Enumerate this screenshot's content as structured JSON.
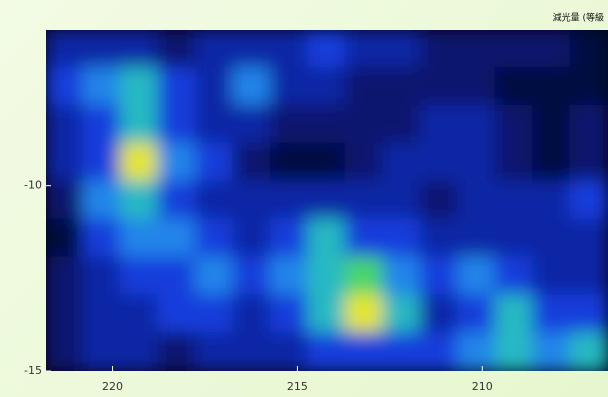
{
  "chart_data": {
    "type": "heatmap",
    "title": "減光量 (等級",
    "xlim": [
      221.8,
      206.6
    ],
    "xticks": [
      220,
      215,
      210
    ],
    "ylim": [
      -15,
      -5.8
    ],
    "yticks": [
      -10,
      -15
    ],
    "z": [
      [
        3,
        3,
        3,
        2,
        3,
        3,
        3,
        4,
        3,
        3,
        2,
        2,
        2,
        2,
        1
      ],
      [
        4,
        5,
        6,
        4,
        3,
        5,
        3,
        3,
        2,
        2,
        2,
        2,
        1,
        1,
        1
      ],
      [
        3,
        4,
        6,
        4,
        3,
        3,
        2,
        2,
        2,
        2,
        3,
        3,
        2,
        1,
        2
      ],
      [
        3,
        4,
        8,
        5,
        4,
        2,
        1,
        1,
        2,
        3,
        3,
        3,
        2,
        1,
        2
      ],
      [
        2,
        5,
        6,
        4,
        3,
        3,
        3,
        3,
        3,
        3,
        2,
        3,
        3,
        3,
        4
      ],
      [
        1,
        4,
        5,
        5,
        4,
        3,
        4,
        6,
        4,
        4,
        3,
        3,
        3,
        3,
        3
      ],
      [
        2,
        3,
        4,
        4,
        5,
        4,
        5,
        6,
        7,
        5,
        4,
        5,
        4,
        3,
        3
      ],
      [
        2,
        3,
        3,
        4,
        4,
        3,
        4,
        6,
        8,
        6,
        3,
        4,
        6,
        4,
        4
      ],
      [
        2,
        3,
        3,
        2,
        3,
        3,
        3,
        4,
        4,
        4,
        4,
        5,
        6,
        5,
        6
      ]
    ]
  }
}
